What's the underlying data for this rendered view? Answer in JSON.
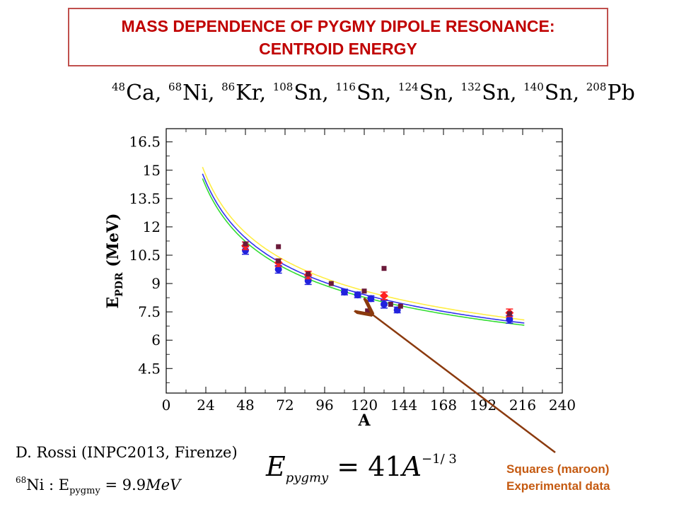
{
  "title": {
    "line1": "MASS  DEPENDENCE OF  PYGMY  DIPOLE  RESONANCE:",
    "line2": "CENTROID ENERGY"
  },
  "nuclei": [
    {
      "mass": "48",
      "symbol": "Ca,"
    },
    {
      "mass": "68",
      "symbol": "Ni,"
    },
    {
      "mass": "86",
      "symbol": "Kr,"
    },
    {
      "mass": "108",
      "symbol": "Sn,"
    },
    {
      "mass": "116",
      "symbol": "Sn,"
    },
    {
      "mass": "124",
      "symbol": "Sn,"
    },
    {
      "mass": "132",
      "symbol": "Sn,"
    },
    {
      "mass": "140",
      "symbol": "Sn,"
    },
    {
      "mass": "208",
      "symbol": "Pb"
    }
  ],
  "chart_data": {
    "type": "scatter",
    "xlabel": "A",
    "ylabel_main": "E",
    "ylabel_sub": "PDR",
    "ylabel_unit": " (MeV)",
    "xlim": [
      0,
      240
    ],
    "ylim": [
      3.2,
      17.2
    ],
    "xticks": [
      "0",
      "24",
      "48",
      "72",
      "96",
      "120",
      "144",
      "168",
      "192",
      "216",
      "240"
    ],
    "yticks": [
      "4.5",
      "6",
      "7.5",
      "9",
      "10.5",
      "12",
      "13.5",
      "15",
      "16.5"
    ],
    "curves": [
      {
        "color": "#ffee44",
        "coef": 42.5,
        "xrange": [
          22,
          217
        ]
      },
      {
        "color": "#3333ee",
        "coef": 41.5,
        "xrange": [
          22,
          217
        ]
      },
      {
        "color": "#33dd33",
        "coef": 40.8,
        "xrange": [
          22,
          217
        ]
      }
    ],
    "series": [
      {
        "marker": "circle",
        "color": "#2222dd",
        "points": [
          {
            "x": 48,
            "y": 10.75,
            "err": 0.2
          },
          {
            "x": 68,
            "y": 9.75,
            "err": 0.2
          },
          {
            "x": 86,
            "y": 9.15,
            "err": 0.2
          },
          {
            "x": 108,
            "y": 8.55,
            "err": 0.15
          },
          {
            "x": 116,
            "y": 8.4,
            "err": 0.15
          },
          {
            "x": 124,
            "y": 8.2,
            "err": 0.15
          },
          {
            "x": 132,
            "y": 7.9,
            "err": 0.2
          },
          {
            "x": 140,
            "y": 7.6,
            "err": 0.15
          },
          {
            "x": 208,
            "y": 7.1,
            "err": 0.2
          }
        ]
      },
      {
        "marker": "diamond",
        "color": "#ff2222",
        "points": [
          {
            "x": 48,
            "y": 11.0,
            "err": 0.2
          },
          {
            "x": 68,
            "y": 10.1,
            "err": 0.2
          },
          {
            "x": 86,
            "y": 9.45,
            "err": 0.2
          },
          {
            "x": 132,
            "y": 8.35,
            "err": 0.2
          },
          {
            "x": 208,
            "y": 7.45,
            "err": 0.2
          }
        ]
      },
      {
        "marker": "square",
        "color": "#6b1a3a",
        "points": [
          {
            "x": 48,
            "y": 11.1
          },
          {
            "x": 68,
            "y": 10.95
          },
          {
            "x": 68,
            "y": 10.2
          },
          {
            "x": 86,
            "y": 9.5
          },
          {
            "x": 100,
            "y": 9.0
          },
          {
            "x": 120,
            "y": 8.6
          },
          {
            "x": 122,
            "y": 7.55
          },
          {
            "x": 132,
            "y": 9.8
          },
          {
            "x": 136,
            "y": 7.9
          },
          {
            "x": 142,
            "y": 7.8
          },
          {
            "x": 208,
            "y": 7.4
          }
        ]
      }
    ],
    "annotation": {
      "line1": "Squares (maroon)",
      "line2": "Experimental data",
      "arrow_color": "#8b3a0e",
      "target": {
        "x": 122,
        "y": 7.55
      }
    }
  },
  "reference": "D. Rossi (INPC2013, Firenze)",
  "ni_result": {
    "mass": "68",
    "symbol": "Ni : E",
    "sub": "pygmy",
    "value": "= 9.9",
    "unit": "MeV"
  },
  "formula": {
    "E": "E",
    "sub": "pygmy",
    "eq": "= 41",
    "A": "A",
    "exp": "−1/ 3"
  }
}
